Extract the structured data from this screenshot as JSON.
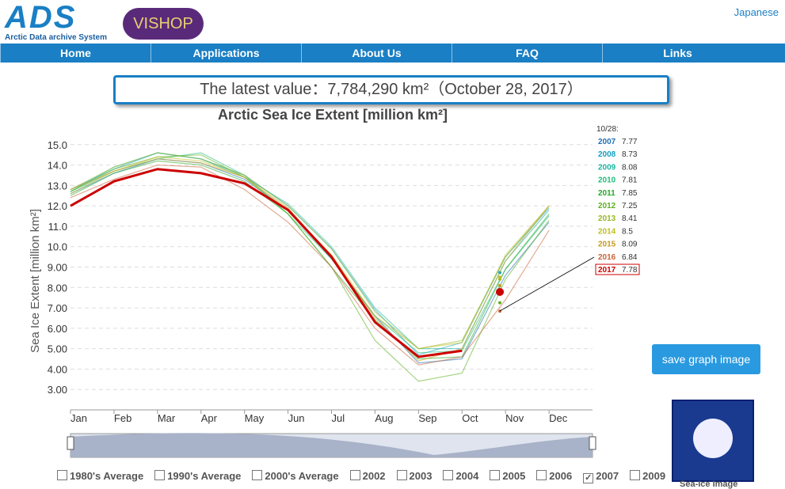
{
  "header": {
    "logo": "ADS",
    "logo_subtitle": "Arctic Data archive System",
    "logo2": "VISHOP",
    "language": "Japanese"
  },
  "nav": [
    "Home",
    "Applications",
    "About Us",
    "FAQ",
    "Links"
  ],
  "latest_banner": "The latest value：7,784,290 km²（October 28, 2017）",
  "chart_data": {
    "type": "line",
    "title": "Arctic Sea Ice Extent [million km²]",
    "y_label": "Sea Ice Extent [million km²]",
    "categories": [
      "Jan",
      "Feb",
      "Mar",
      "Apr",
      "May",
      "Jun",
      "Jul",
      "Aug",
      "Sep",
      "Oct",
      "Nov",
      "Dec"
    ],
    "ylim": [
      2,
      16
    ],
    "yticks": [
      {
        "value": 3,
        "label": "3.00"
      },
      {
        "value": 4,
        "label": "4.00"
      },
      {
        "value": 5,
        "label": "5.00"
      },
      {
        "value": 6,
        "label": "6.00"
      },
      {
        "value": 7,
        "label": "7.00"
      },
      {
        "value": 8,
        "label": "8.00"
      },
      {
        "value": 9,
        "label": "9.00"
      },
      {
        "value": 10,
        "label": "10.0"
      },
      {
        "value": 11,
        "label": "11.0"
      },
      {
        "value": 12,
        "label": "12.0"
      },
      {
        "value": 13,
        "label": "13.0"
      },
      {
        "value": 14,
        "label": "14.0"
      },
      {
        "value": 15,
        "label": "15.0"
      }
    ],
    "grid": true,
    "latest_label": "10/28:",
    "series": [
      {
        "name": "2007",
        "color": "#1f6fb4",
        "latest": 7.77,
        "values": [
          12.6,
          13.6,
          14.3,
          14.1,
          13.3,
          11.8,
          9.4,
          6.6,
          4.3,
          4.5,
          8.6,
          11.2
        ]
      },
      {
        "name": "2008",
        "color": "#12a0c0",
        "latest": 8.73,
        "values": [
          12.8,
          13.8,
          14.6,
          14.3,
          13.5,
          12.0,
          9.9,
          6.9,
          4.7,
          5.3,
          9.5,
          11.9
        ]
      },
      {
        "name": "2009",
        "color": "#19b4a0",
        "latest": 8.08,
        "values": [
          12.7,
          13.9,
          14.6,
          14.3,
          13.4,
          12.1,
          10.0,
          7.0,
          5.0,
          5.0,
          9.3,
          11.8
        ]
      },
      {
        "name": "2010",
        "color": "#1ebe78",
        "latest": 7.81,
        "values": [
          12.7,
          13.7,
          14.3,
          14.6,
          13.5,
          11.6,
          9.4,
          6.6,
          4.8,
          4.9,
          8.9,
          11.5
        ]
      },
      {
        "name": "2011",
        "color": "#22aa22",
        "latest": 7.85,
        "values": [
          12.5,
          13.6,
          14.2,
          14.0,
          13.2,
          11.6,
          9.0,
          6.4,
          4.5,
          4.6,
          8.9,
          11.6
        ]
      },
      {
        "name": "2012",
        "color": "#5db020",
        "latest": 7.25,
        "values": [
          12.7,
          13.8,
          14.4,
          14.5,
          13.4,
          11.6,
          9.0,
          5.4,
          3.4,
          3.8,
          8.4,
          11.3
        ]
      },
      {
        "name": "2013",
        "color": "#96b820",
        "latest": 8.41,
        "values": [
          12.8,
          13.9,
          14.6,
          14.3,
          13.5,
          12.0,
          9.9,
          6.8,
          5.0,
          5.4,
          9.5,
          12.0
        ]
      },
      {
        "name": "2014",
        "color": "#bfbd1e",
        "latest": 8.5,
        "values": [
          12.6,
          13.7,
          14.4,
          14.2,
          13.4,
          11.8,
          9.6,
          6.6,
          5.0,
          5.3,
          9.6,
          12.0
        ]
      },
      {
        "name": "2015",
        "color": "#c89a1c",
        "latest": 8.09,
        "values": [
          12.8,
          13.7,
          14.3,
          14.1,
          13.4,
          11.9,
          9.5,
          6.5,
          4.4,
          5.0,
          9.3,
          12.0
        ]
      },
      {
        "name": "2016",
        "color": "#c8643a",
        "latest": 6.84,
        "values": [
          12.4,
          13.3,
          14.0,
          13.9,
          12.8,
          11.2,
          9.0,
          6.0,
          4.2,
          4.6,
          7.4,
          10.8
        ]
      },
      {
        "name": "2017",
        "color": "#cc0000",
        "latest": 7.78,
        "values": [
          12.0,
          13.2,
          13.8,
          13.6,
          13.1,
          11.8,
          9.5,
          6.3,
          4.6,
          4.9,
          null,
          null
        ]
      }
    ]
  },
  "save_button": "save graph image",
  "sea_ice_image": "Sea-Ice Image",
  "checkboxes": [
    {
      "label": "1980's Average",
      "checked": false
    },
    {
      "label": "1990's Average",
      "checked": false
    },
    {
      "label": "2000's Average",
      "checked": false
    },
    {
      "label": "2002",
      "checked": false
    },
    {
      "label": "2003",
      "checked": false
    },
    {
      "label": "2004",
      "checked": false
    },
    {
      "label": "2005",
      "checked": false
    },
    {
      "label": "2006",
      "checked": false
    },
    {
      "label": "2007",
      "checked": true
    },
    {
      "label": "2009",
      "checked": false
    }
  ]
}
